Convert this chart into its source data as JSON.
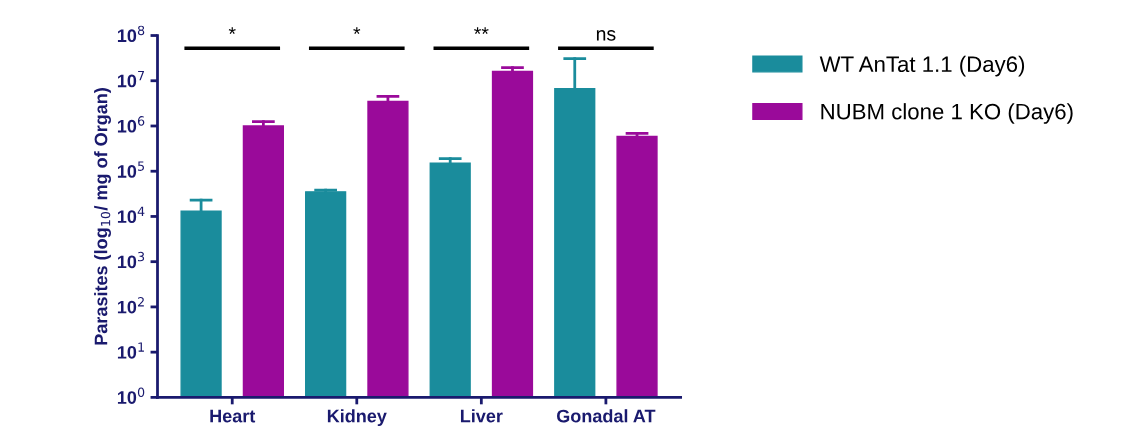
{
  "chart_data": {
    "type": "bar",
    "ylabel": "Parasites (log$_{10}$/ mg of Organ)",
    "categories": [
      "Heart",
      "Kidney",
      "Liver",
      "Gonadal AT"
    ],
    "series": [
      {
        "name": "WT AnTat 1.1 (Day6)",
        "color": "#1a8c9c",
        "values": [
          13000,
          35000,
          150000,
          6700000
        ],
        "errors": [
          [
            13000,
            23000
          ],
          [
            35000,
            38000
          ],
          [
            150000,
            190000
          ],
          [
            6700000,
            31000000
          ]
        ]
      },
      {
        "name": "NUBM clone 1 KO (Day6)",
        "color": "#9a0a9a",
        "values": [
          1000000,
          3500000,
          16000000,
          590000
        ],
        "errors": [
          [
            1000000,
            1250000
          ],
          [
            3500000,
            4500000
          ],
          [
            16000000,
            19500000
          ],
          [
            590000,
            690000
          ]
        ]
      }
    ],
    "log": "y",
    "ylim": [
      1,
      100000000
    ],
    "yticks": [
      {
        "value": 1,
        "label": "10$^{0}$"
      },
      {
        "value": 10,
        "label": "10$^{1}$"
      },
      {
        "value": 100,
        "label": "10$^{2}$"
      },
      {
        "value": 1000,
        "label": "10$^{3}$"
      },
      {
        "value": 10000,
        "label": "10$^{4}$"
      },
      {
        "value": 100000,
        "label": "10$^{5}$"
      },
      {
        "value": 1000000,
        "label": "10$^{6}$"
      },
      {
        "value": 10000000,
        "label": "10$^{7}$"
      },
      {
        "value": 100000000,
        "label": "10$^{8}$"
      }
    ],
    "annotations": [
      "*",
      "*",
      "**",
      "ns"
    ],
    "grid": false,
    "legend": "right"
  }
}
